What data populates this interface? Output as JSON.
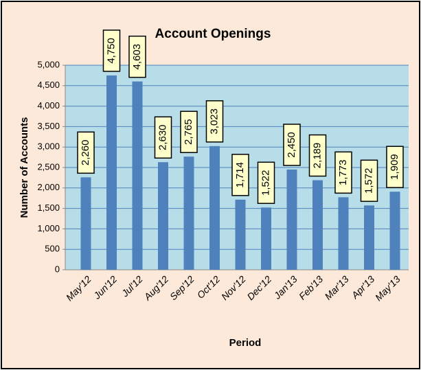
{
  "chart_data": {
    "type": "bar",
    "title": "Account Openings",
    "x_label": "Period",
    "y_label": "Number of Accounts",
    "categories": [
      "May'12",
      "Jun'12",
      "Jul'12",
      "Aug'12",
      "Sep'12",
      "Oct'12",
      "Nov'12",
      "Dec'12",
      "Jan'13",
      "Feb'13",
      "Mar'13",
      "Apr'13",
      "May'13"
    ],
    "values": [
      2260,
      4750,
      4603,
      2630,
      2765,
      3023,
      1714,
      1522,
      2450,
      2189,
      1773,
      1572,
      1909
    ],
    "value_labels": [
      "2,260",
      "4,750",
      "4,603",
      "2,630",
      "2,765",
      "3,023",
      "1,714",
      "1,522",
      "2,450",
      "2,189",
      "1,773",
      "1,572",
      "1,909"
    ],
    "color": "#4f81bd",
    "ylim": [
      0,
      5000
    ],
    "yticks": [
      0,
      500,
      {
        "value": 1000,
        "label": "1,000"
      },
      {
        "value": 1500,
        "label": "1,500"
      },
      {
        "value": 2000,
        "label": "2,000"
      },
      {
        "value": 2500,
        "label": "2,500"
      },
      {
        "value": 3000,
        "label": "3,000"
      },
      {
        "value": 3500,
        "label": "3,500"
      },
      {
        "value": 4000,
        "label": "4,000"
      },
      {
        "value": 4500,
        "label": "4,500"
      },
      {
        "value": 5000,
        "label": "5,000"
      }
    ],
    "grid": true
  }
}
